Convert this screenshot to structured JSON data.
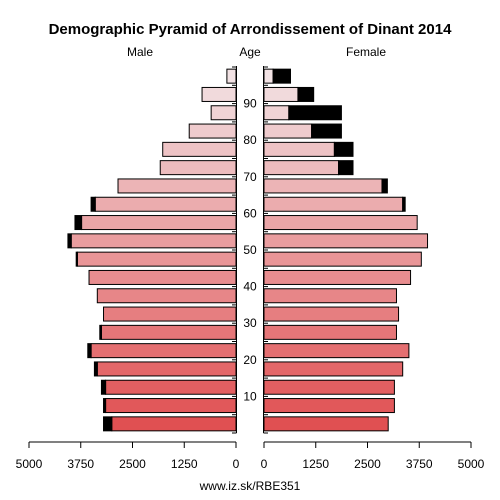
{
  "chart_data": {
    "type": "bar",
    "title": "Demographic Pyramid of Arrondissement of Dinant 2014",
    "left_label": "Male",
    "center_label": "Age",
    "right_label": "Female",
    "age_groups": [
      "0-4",
      "5-9",
      "10-14",
      "15-19",
      "20-24",
      "25-29",
      "30-34",
      "35-39",
      "40-44",
      "45-49",
      "50-54",
      "55-59",
      "60-64",
      "65-69",
      "70-74",
      "75-79",
      "80-84",
      "85-89",
      "90-94",
      "95+"
    ],
    "age_tick_labels": [
      "10",
      "20",
      "30",
      "40",
      "50",
      "60",
      "70",
      "80",
      "90"
    ],
    "x_tick_labels_left": [
      "5000",
      "3750",
      "2500",
      "1250",
      "0"
    ],
    "x_tick_labels_right": [
      "0",
      "1250",
      "2500",
      "3750",
      "5000"
    ],
    "xlim": [
      0,
      5000
    ],
    "series": [
      {
        "name": "Male",
        "values": [
          3000,
          3150,
          3150,
          3350,
          3500,
          3250,
          3200,
          3350,
          3550,
          3830,
          3980,
          3730,
          3400,
          2850,
          1830,
          1770,
          1130,
          600,
          820,
          220
        ]
      },
      {
        "name": "Male",
        "values": [
          200,
          50,
          100,
          70,
          80,
          40,
          0,
          0,
          0,
          30,
          80,
          160,
          100,
          0,
          0,
          0,
          0,
          0,
          0,
          0
        ]
      },
      {
        "name": "Female",
        "values": [
          3000,
          3150,
          3150,
          3350,
          3500,
          3200,
          3250,
          3200,
          3540,
          3800,
          3950,
          3700,
          3350,
          2850,
          1800,
          1700,
          1150,
          600,
          820,
          220
        ]
      },
      {
        "name": "Female",
        "values": [
          0,
          0,
          0,
          0,
          0,
          0,
          0,
          0,
          0,
          0,
          0,
          0,
          60,
          130,
          350,
          450,
          720,
          1270,
          380,
          420
        ]
      }
    ]
  },
  "footer_url": "www.iz.sk/RBE351"
}
